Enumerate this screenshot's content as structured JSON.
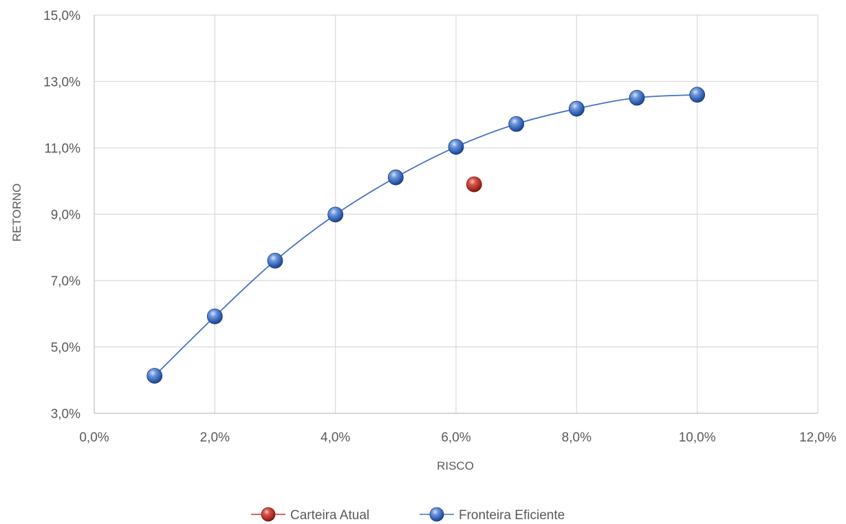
{
  "chart_data": {
    "type": "scatter",
    "title": "",
    "xlabel": "RISCO",
    "ylabel": "RETORNO",
    "xlim": [
      0.0,
      12.0
    ],
    "ylim": [
      3.0,
      15.0
    ],
    "x_ticks": [
      "0,0%",
      "2,0%",
      "4,0%",
      "6,0%",
      "8,0%",
      "10,0%",
      "12,0%"
    ],
    "y_ticks": [
      "3,0%",
      "5,0%",
      "7,0%",
      "9,0%",
      "11,0%",
      "13,0%",
      "15,0%"
    ],
    "grid": true,
    "legend_position": "bottom",
    "series": [
      {
        "name": "Carteira Atual",
        "color": "#c0392b",
        "line": false,
        "points": [
          {
            "x": 6.3,
            "y": 9.9
          }
        ]
      },
      {
        "name": "Fronteira Eficiente",
        "color": "#4472c4",
        "line": true,
        "points": [
          {
            "x": 1.0,
            "y": 4.13
          },
          {
            "x": 2.0,
            "y": 5.92
          },
          {
            "x": 3.0,
            "y": 7.6
          },
          {
            "x": 4.0,
            "y": 8.99
          },
          {
            "x": 5.0,
            "y": 10.11
          },
          {
            "x": 6.0,
            "y": 11.03
          },
          {
            "x": 7.0,
            "y": 11.72
          },
          {
            "x": 8.0,
            "y": 12.18
          },
          {
            "x": 9.0,
            "y": 12.51
          },
          {
            "x": 10.0,
            "y": 12.6
          }
        ]
      }
    ]
  }
}
